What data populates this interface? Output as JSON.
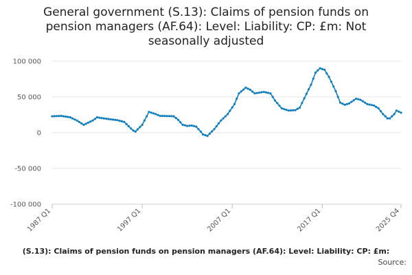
{
  "chart_data": {
    "type": "line",
    "title": "General government (S.13): Claims of pension funds on pension managers (AF.64): Level: Liability: CP: £m: Not seasonally adjusted",
    "xlabel": "",
    "ylabel": "",
    "ylim": [
      -100000,
      100000
    ],
    "yticks": [
      {
        "value": 100000,
        "label": "100 000"
      },
      {
        "value": 50000,
        "label": "50 000"
      },
      {
        "value": 0,
        "label": "0"
      },
      {
        "value": -50000,
        "label": "-50 000"
      },
      {
        "value": -100000,
        "label": "-100 000"
      }
    ],
    "xticks": [
      {
        "value": 1987.0,
        "label": "1987 Q1"
      },
      {
        "value": 1997.0,
        "label": "1997 Q1"
      },
      {
        "value": 2007.0,
        "label": "2007 Q1"
      },
      {
        "value": 2017.0,
        "label": "2017 Q1"
      },
      {
        "value": 2025.75,
        "label": "2025 Q4"
      }
    ],
    "xlim": [
      1987.0,
      2025.75
    ],
    "grid": "horizontal",
    "color": "#0f7dbe",
    "series": [
      {
        "anchors": [
          [
            1987.0,
            23000
          ],
          [
            1988.0,
            23500
          ],
          [
            1989.0,
            21500
          ],
          [
            1989.75,
            17000
          ],
          [
            1990.5,
            11000
          ],
          [
            1991.5,
            17000
          ],
          [
            1992.0,
            21500
          ],
          [
            1993.0,
            19500
          ],
          [
            1994.25,
            17500
          ],
          [
            1995.0,
            15000
          ],
          [
            1996.0,
            3000
          ],
          [
            1996.25,
            1500
          ],
          [
            1997.0,
            11000
          ],
          [
            1997.75,
            29000
          ],
          [
            1998.5,
            26000
          ],
          [
            1999.0,
            23500
          ],
          [
            2000.5,
            23000
          ],
          [
            2001.0,
            18000
          ],
          [
            2001.5,
            11000
          ],
          [
            2002.0,
            9500
          ],
          [
            2002.5,
            10000
          ],
          [
            2003.0,
            8500
          ],
          [
            2003.5,
            1500
          ],
          [
            2003.75,
            -2500
          ],
          [
            2004.25,
            -4500
          ],
          [
            2005.0,
            5000
          ],
          [
            2005.75,
            17000
          ],
          [
            2006.5,
            26000
          ],
          [
            2007.25,
            40000
          ],
          [
            2007.75,
            55000
          ],
          [
            2008.5,
            63000
          ],
          [
            2009.0,
            60000
          ],
          [
            2009.5,
            55000
          ],
          [
            2010.5,
            57000
          ],
          [
            2011.25,
            55000
          ],
          [
            2011.75,
            45000
          ],
          [
            2012.5,
            34000
          ],
          [
            2013.25,
            31000
          ],
          [
            2014.0,
            31500
          ],
          [
            2014.5,
            35000
          ],
          [
            2015.0,
            48000
          ],
          [
            2015.75,
            67000
          ],
          [
            2016.25,
            84000
          ],
          [
            2016.75,
            90000
          ],
          [
            2017.25,
            88000
          ],
          [
            2017.75,
            78000
          ],
          [
            2018.5,
            58000
          ],
          [
            2019.0,
            42000
          ],
          [
            2019.5,
            39000
          ],
          [
            2020.0,
            41000
          ],
          [
            2020.75,
            47500
          ],
          [
            2021.25,
            46000
          ],
          [
            2022.0,
            40000
          ],
          [
            2022.75,
            38000
          ],
          [
            2023.25,
            34000
          ],
          [
            2023.75,
            26000
          ],
          [
            2024.25,
            20000
          ],
          [
            2024.5,
            20000
          ],
          [
            2025.0,
            26000
          ],
          [
            2025.25,
            31000
          ],
          [
            2025.75,
            28000
          ]
        ]
      }
    ],
    "x_tick_labels": [
      "1987 Q1",
      "1997 Q1",
      "2007 Q1",
      "2017 Q1",
      "2025 Q4"
    ],
    "footer_series": "(S.13): Claims of pension funds on pension managers (AF.64): Level: Liability: CP: £m:",
    "footer_source": "Source:"
  }
}
